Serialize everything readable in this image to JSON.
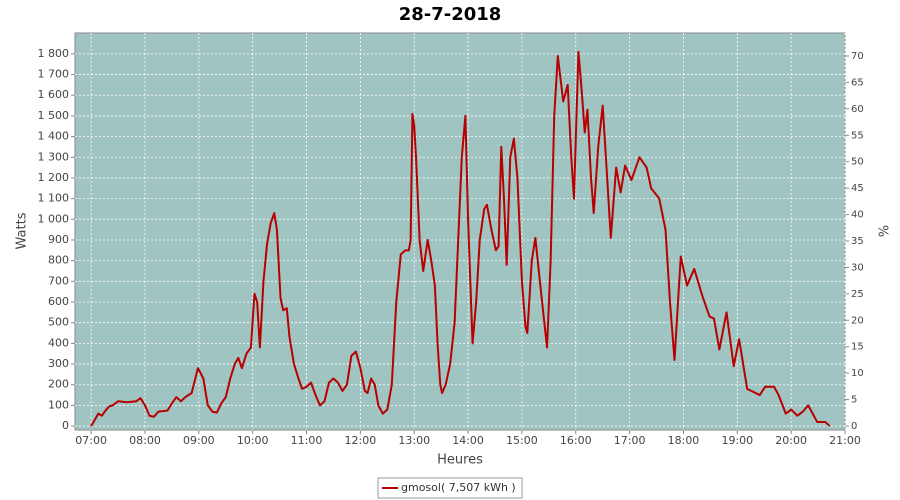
{
  "chart_data": {
    "type": "line",
    "title": "28-7-2018",
    "xlabel": "Heures",
    "ylabel": "Watts",
    "y2label": "%",
    "x": [
      420,
      424,
      428,
      432,
      436,
      440,
      444,
      450,
      460,
      470,
      475,
      480,
      485,
      490,
      495,
      505,
      510,
      515,
      520,
      525,
      532,
      539,
      545,
      550,
      555,
      560,
      565,
      570,
      575,
      580,
      584,
      588,
      593,
      598,
      602,
      605,
      608,
      612,
      616,
      620,
      624,
      627,
      631,
      634,
      638,
      641,
      646,
      651,
      655,
      660,
      665,
      670,
      675,
      680,
      685,
      690,
      695,
      700,
      705,
      710,
      715,
      720,
      725,
      728,
      732,
      736,
      740,
      745,
      750,
      755,
      760,
      765,
      770,
      774,
      776,
      778,
      780,
      782,
      786,
      790,
      795,
      799,
      803,
      806,
      809,
      811,
      815,
      820,
      825,
      829,
      833,
      837,
      840,
      845,
      849,
      853,
      858,
      861,
      866,
      871,
      874,
      877,
      880,
      883,
      887,
      891,
      895,
      900,
      904,
      906,
      911,
      915,
      920,
      925,
      928,
      932,
      936,
      940,
      946,
      951,
      955,
      958,
      963,
      967,
      970,
      973,
      977,
      980,
      985,
      990,
      995,
      999,
      1005,
      1010,
      1015,
      1022,
      1031,
      1039,
      1044,
      1053,
      1060,
      1065,
      1070,
      1077,
      1084,
      1092,
      1101,
      1109,
      1114,
      1120,
      1128,
      1136,
      1142,
      1151,
      1165,
      1171,
      1181,
      1186,
      1194,
      1200,
      1207,
      1213,
      1219,
      1229,
      1238,
      1243
    ],
    "series": [
      {
        "name": "gmosol( 7,507 kWh )",
        "color": "#b80000",
        "values": [
          0,
          30,
          60,
          50,
          75,
          95,
          100,
          120,
          115,
          120,
          135,
          100,
          50,
          45,
          70,
          75,
          110,
          140,
          120,
          140,
          160,
          280,
          230,
          100,
          70,
          65,
          110,
          140,
          230,
          300,
          330,
          280,
          350,
          380,
          640,
          600,
          380,
          700,
          880,
          980,
          1030,
          950,
          620,
          560,
          570,
          430,
          300,
          230,
          180,
          190,
          210,
          150,
          100,
          120,
          210,
          230,
          210,
          170,
          200,
          340,
          360,
          280,
          170,
          160,
          230,
          200,
          100,
          60,
          80,
          200,
          600,
          830,
          850,
          850,
          900,
          1510,
          1450,
          1300,
          900,
          750,
          900,
          800,
          680,
          400,
          200,
          160,
          200,
          300,
          500,
          900,
          1300,
          1500,
          1000,
          400,
          600,
          900,
          1050,
          1070,
          950,
          850,
          870,
          1350,
          1100,
          780,
          1300,
          1390,
          1200,
          700,
          480,
          450,
          800,
          910,
          700,
          500,
          380,
          800,
          1500,
          1790,
          1570,
          1650,
          1300,
          1100,
          1810,
          1600,
          1420,
          1530,
          1200,
          1030,
          1350,
          1550,
          1200,
          910,
          1250,
          1130,
          1260,
          1190,
          1300,
          1250,
          1150,
          1100,
          950,
          600,
          320,
          820,
          680,
          760,
          630,
          530,
          520,
          370,
          550,
          290,
          420,
          180,
          150,
          190,
          190,
          150,
          60,
          80,
          50,
          70,
          100,
          20,
          20,
          0
        ]
      }
    ],
    "xlim": [
      402,
      1260
    ],
    "xticks": [
      {
        "value": 420,
        "label": "07:00"
      },
      {
        "value": 480,
        "label": "08:00"
      },
      {
        "value": 540,
        "label": "09:00"
      },
      {
        "value": 600,
        "label": "10:00"
      },
      {
        "value": 660,
        "label": "11:00"
      },
      {
        "value": 720,
        "label": "12:00"
      },
      {
        "value": 780,
        "label": "13:00"
      },
      {
        "value": 840,
        "label": "14:00"
      },
      {
        "value": 900,
        "label": "15:00"
      },
      {
        "value": 960,
        "label": "16:00"
      },
      {
        "value": 1020,
        "label": "17:00"
      },
      {
        "value": 1080,
        "label": "18:00"
      },
      {
        "value": 1140,
        "label": "19:00"
      },
      {
        "value": 1200,
        "label": "20:00"
      },
      {
        "value": 1260,
        "label": "21:00"
      }
    ],
    "ylim": [
      -19,
      1901
    ],
    "yticks": [
      0,
      100,
      200,
      300,
      400,
      500,
      600,
      700,
      800,
      900,
      {
        "value": 1000,
        "label": "1 000"
      },
      {
        "value": 1100,
        "label": "1 100"
      },
      {
        "value": 1200,
        "label": "1 200"
      },
      {
        "value": 1300,
        "label": "1 300"
      },
      {
        "value": 1400,
        "label": "1 400"
      },
      {
        "value": 1500,
        "label": "1 500"
      },
      {
        "value": 1600,
        "label": "1 600"
      },
      {
        "value": 1700,
        "label": "1 700"
      },
      {
        "value": 1800,
        "label": "1 800"
      }
    ],
    "y2lim": [
      -0.76,
      74.35
    ],
    "y2ticks": [
      0,
      5,
      10,
      15,
      20,
      25,
      30,
      35,
      40,
      45,
      50,
      55,
      60,
      65,
      70
    ],
    "grid": true,
    "legend": "bottom"
  }
}
